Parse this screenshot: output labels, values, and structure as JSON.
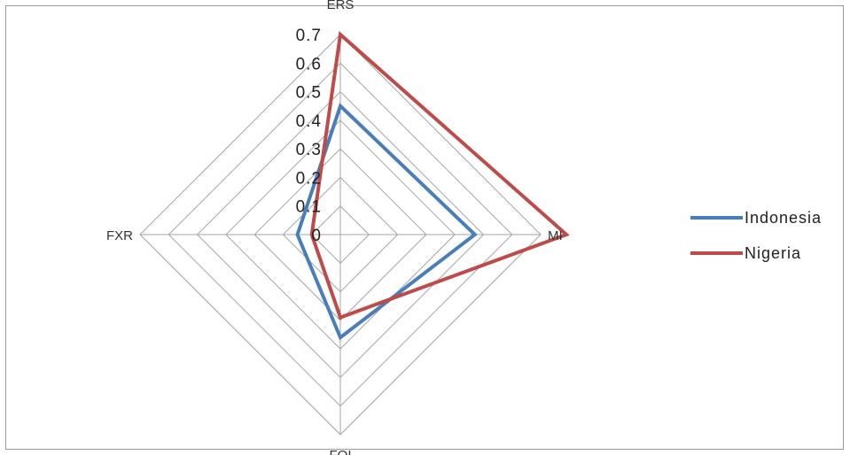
{
  "chart_data": {
    "type": "radar",
    "axes": [
      "ERS",
      "MI",
      "FOI",
      "FXR"
    ],
    "rlim": [
      0,
      0.7
    ],
    "ticks": [
      "0",
      "0.1",
      "0.2",
      "0.3",
      "0.4",
      "0.5",
      "0.6",
      "0.7"
    ],
    "grid": true,
    "legend_position": "right",
    "series": [
      {
        "name": "Indonesia",
        "color": "#4a7ebb",
        "values": [
          0.45,
          0.47,
          0.36,
          0.15
        ]
      },
      {
        "name": "Nigeria",
        "color": "#be4b48",
        "values": [
          0.7,
          0.79,
          0.29,
          0.1
        ]
      }
    ]
  }
}
